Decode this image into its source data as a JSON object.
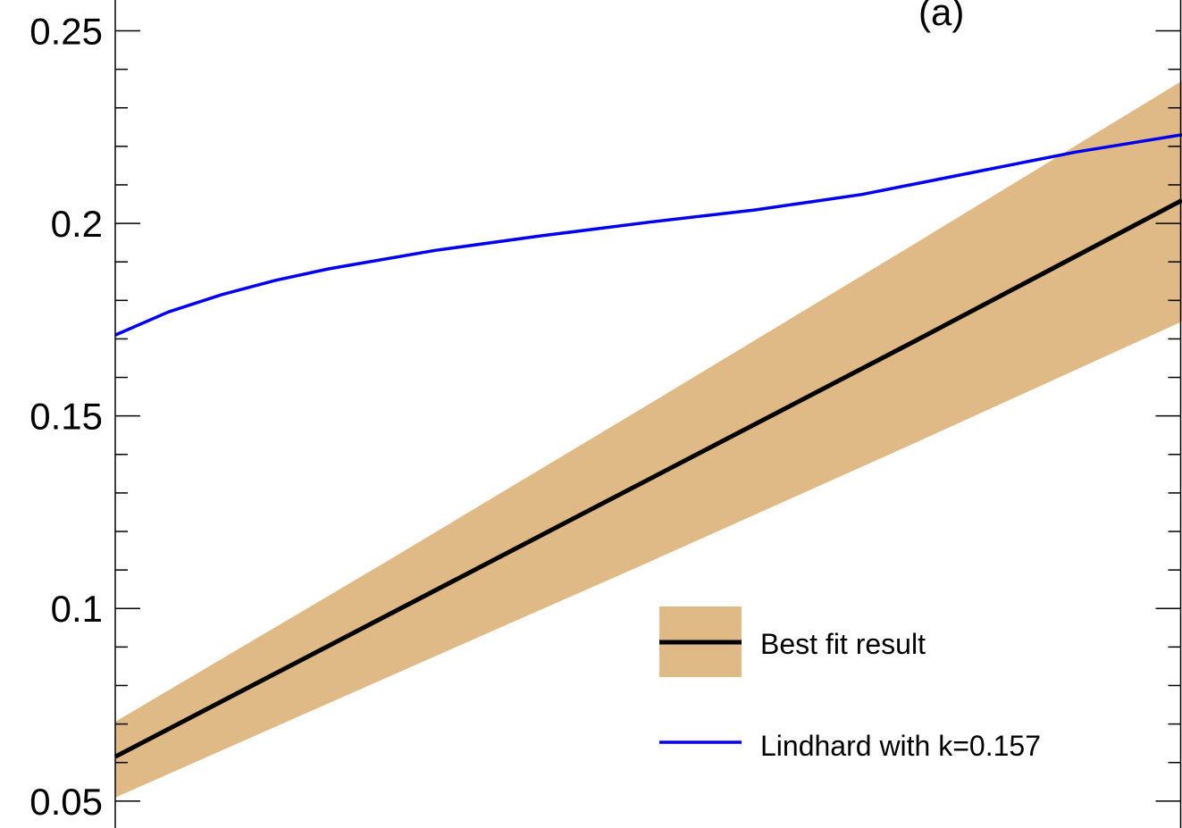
{
  "chart_data": {
    "type": "line",
    "panel_label": "(a)",
    "title": "",
    "xlabel": "",
    "ylabel": "",
    "ylim": [
      0.043,
      0.258
    ],
    "xlim": [
      0,
      1
    ],
    "y_ticks": [
      {
        "value": 0.05,
        "label": "0.05"
      },
      {
        "value": 0.1,
        "label": "0.1"
      },
      {
        "value": 0.15,
        "label": "0.15"
      },
      {
        "value": 0.2,
        "label": "0.2"
      },
      {
        "value": 0.25,
        "label": "0.25"
      }
    ],
    "y_minor_step": 0.01,
    "band": {
      "name": "Best fit result",
      "x": [
        0,
        0.25,
        0.5,
        0.75,
        1
      ],
      "upper": [
        0.0706,
        0.1115,
        0.153,
        0.1948,
        0.237
      ],
      "lower": [
        0.0509,
        0.0815,
        0.112,
        0.143,
        0.1745
      ]
    },
    "series": [
      {
        "name": "Best fit result",
        "color": "#000000",
        "x": [
          0,
          0.25,
          0.5,
          0.75,
          1
        ],
        "values": [
          0.0615,
          0.0975,
          0.1335,
          0.1695,
          0.206
        ]
      },
      {
        "name": "Lindhard with k=0.157",
        "color": "#0000ee",
        "x": [
          0,
          0.05,
          0.1,
          0.15,
          0.2,
          0.3,
          0.4,
          0.5,
          0.6,
          0.7,
          0.8,
          0.9,
          1
        ],
        "values": [
          0.171,
          0.177,
          0.1815,
          0.1852,
          0.1882,
          0.193,
          0.1968,
          0.2003,
          0.2035,
          0.2075,
          0.213,
          0.2185,
          0.223
        ]
      }
    ],
    "band_color": "#dfba86",
    "legend": {
      "position": "bottom-right",
      "entries": [
        "Best fit result",
        "Lindhard with k=0.157"
      ]
    }
  }
}
